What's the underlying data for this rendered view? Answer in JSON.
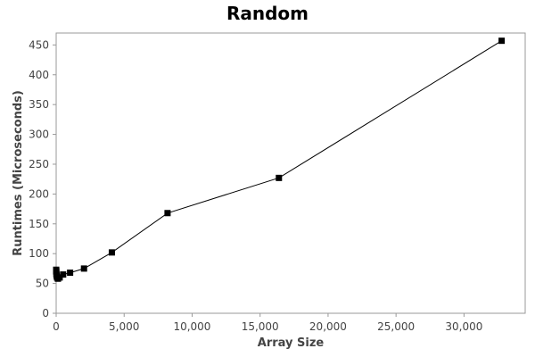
{
  "chart_data": {
    "type": "line",
    "title": "Random",
    "xlabel": "Array Size",
    "ylabel": "Runtimes (Microseconds)",
    "xlim": [
      0,
      34500
    ],
    "ylim": [
      0,
      470
    ],
    "x_ticks": [
      0,
      5000,
      10000,
      15000,
      20000,
      25000,
      30000
    ],
    "x_tick_labels": [
      "0",
      "5,000",
      "10,000",
      "15,000",
      "20,000",
      "25,000",
      "30,000"
    ],
    "y_ticks": [
      0,
      50,
      100,
      150,
      200,
      250,
      300,
      350,
      400,
      450
    ],
    "y_tick_labels": [
      "0",
      "50",
      "100",
      "150",
      "200",
      "250",
      "300",
      "350",
      "400",
      "450"
    ],
    "grid": false,
    "series": [
      {
        "marker": "square",
        "color": "#000000",
        "x": [
          1,
          2,
          4,
          8,
          16,
          32,
          64,
          128,
          256,
          512,
          1024,
          2048,
          4096,
          8192,
          16384,
          32768
        ],
        "y": [
          73,
          72,
          71,
          70,
          66,
          63,
          60,
          58,
          60,
          65,
          68,
          75,
          102,
          168,
          227,
          457
        ]
      }
    ]
  }
}
